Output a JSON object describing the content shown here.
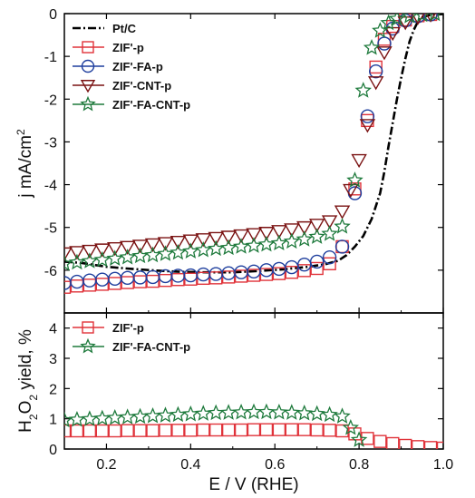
{
  "chart_data": [
    {
      "type": "line",
      "panel": "top",
      "xlabel": "",
      "ylabel": "j mA/cm²",
      "ylabel_main": "j mA/cm",
      "ylabel_sup": "2",
      "xlim": [
        0.1,
        1.0
      ],
      "ylim": [
        -7,
        0
      ],
      "x_ticks": [
        0.2,
        0.4,
        0.6,
        0.8,
        1.0
      ],
      "y_ticks": [
        0,
        -1,
        -2,
        -3,
        -4,
        -5,
        -6
      ],
      "y_tick_labels": [
        "0",
        "-1",
        "-2",
        "-3",
        "-4",
        "-5",
        "-6"
      ],
      "grid": false,
      "legend_position": "top-left",
      "series": [
        {
          "name": "Pt/C",
          "marker": "none",
          "line": "dash-dot",
          "color": "#000000",
          "x": [
            0.1,
            0.14,
            0.2,
            0.26,
            0.32,
            0.38,
            0.44,
            0.5,
            0.56,
            0.62,
            0.68,
            0.72,
            0.75,
            0.77,
            0.79,
            0.81,
            0.83,
            0.85,
            0.86,
            0.87,
            0.88,
            0.89,
            0.9,
            0.91,
            0.92,
            0.93,
            0.94,
            0.95,
            0.97,
            1.0
          ],
          "y": [
            -5.8,
            -5.83,
            -5.92,
            -5.97,
            -6.01,
            -6.04,
            -6.05,
            -6.05,
            -6.02,
            -5.98,
            -5.92,
            -5.86,
            -5.78,
            -5.65,
            -5.45,
            -5.2,
            -4.8,
            -4.2,
            -3.7,
            -3.1,
            -2.55,
            -2.0,
            -1.5,
            -1.05,
            -0.65,
            -0.38,
            -0.18,
            -0.08,
            -0.03,
            -0.01
          ]
        },
        {
          "name": "ZIF'-p",
          "marker": "square",
          "color": "#e0333a",
          "x": [
            0.1,
            0.13,
            0.16,
            0.19,
            0.22,
            0.25,
            0.28,
            0.31,
            0.34,
            0.37,
            0.4,
            0.43,
            0.46,
            0.49,
            0.52,
            0.55,
            0.58,
            0.61,
            0.64,
            0.67,
            0.7,
            0.73,
            0.76,
            0.79,
            0.82,
            0.84,
            0.86,
            0.88,
            0.91,
            0.94,
            0.97
          ],
          "y": [
            -6.4,
            -6.37,
            -6.35,
            -6.33,
            -6.31,
            -6.29,
            -6.27,
            -6.26,
            -6.24,
            -6.22,
            -6.21,
            -6.19,
            -6.18,
            -6.16,
            -6.14,
            -6.12,
            -6.1,
            -6.08,
            -6.05,
            -6.01,
            -5.96,
            -5.85,
            -5.45,
            -4.1,
            -2.5,
            -1.25,
            -0.6,
            -0.3,
            -0.15,
            -0.05,
            -0.02
          ]
        },
        {
          "name": "ZIF'-FA-p",
          "marker": "circle",
          "color": "#1f3f9e",
          "x": [
            0.1,
            0.13,
            0.16,
            0.19,
            0.22,
            0.25,
            0.28,
            0.31,
            0.34,
            0.37,
            0.4,
            0.43,
            0.46,
            0.49,
            0.52,
            0.55,
            0.58,
            0.61,
            0.64,
            0.67,
            0.7,
            0.73,
            0.76,
            0.79,
            0.82,
            0.84,
            0.86,
            0.88,
            0.91,
            0.94,
            0.97
          ],
          "y": [
            -6.3,
            -6.27,
            -6.24,
            -6.22,
            -6.2,
            -6.18,
            -6.17,
            -6.16,
            -6.14,
            -6.13,
            -6.12,
            -6.1,
            -6.09,
            -6.07,
            -6.05,
            -6.03,
            -6.0,
            -5.97,
            -5.93,
            -5.87,
            -5.8,
            -5.7,
            -5.45,
            -4.2,
            -2.4,
            -1.35,
            -0.7,
            -0.35,
            -0.16,
            -0.06,
            -0.02
          ]
        },
        {
          "name": "ZIF'-CNT-p",
          "marker": "triangle-down",
          "color": "#7a1212",
          "x": [
            0.1,
            0.13,
            0.16,
            0.19,
            0.22,
            0.25,
            0.28,
            0.31,
            0.34,
            0.37,
            0.4,
            0.43,
            0.46,
            0.49,
            0.52,
            0.55,
            0.58,
            0.61,
            0.64,
            0.67,
            0.7,
            0.73,
            0.76,
            0.78,
            0.8,
            0.82,
            0.84,
            0.86,
            0.88,
            0.91,
            0.94,
            0.97
          ],
          "y": [
            -5.6,
            -5.57,
            -5.54,
            -5.51,
            -5.48,
            -5.45,
            -5.42,
            -5.39,
            -5.36,
            -5.33,
            -5.3,
            -5.27,
            -5.24,
            -5.21,
            -5.18,
            -5.15,
            -5.12,
            -5.08,
            -5.04,
            -4.99,
            -4.93,
            -4.85,
            -4.62,
            -4.12,
            -3.42,
            -2.6,
            -1.6,
            -0.9,
            -0.45,
            -0.2,
            -0.08,
            -0.02
          ]
        },
        {
          "name": "ZIF'-FA-CNT-p",
          "marker": "star",
          "color": "#1e7a3c",
          "x": [
            0.1,
            0.13,
            0.16,
            0.19,
            0.22,
            0.25,
            0.28,
            0.31,
            0.34,
            0.37,
            0.4,
            0.43,
            0.46,
            0.49,
            0.52,
            0.55,
            0.58,
            0.61,
            0.64,
            0.67,
            0.7,
            0.73,
            0.76,
            0.79,
            0.81,
            0.83,
            0.85,
            0.87,
            0.89,
            0.92,
            0.95,
            0.98
          ],
          "y": [
            -5.85,
            -5.82,
            -5.79,
            -5.76,
            -5.73,
            -5.7,
            -5.67,
            -5.65,
            -5.62,
            -5.59,
            -5.56,
            -5.53,
            -5.5,
            -5.48,
            -5.45,
            -5.43,
            -5.4,
            -5.37,
            -5.33,
            -5.28,
            -5.22,
            -5.15,
            -4.98,
            -3.9,
            -1.8,
            -0.8,
            -0.4,
            -0.22,
            -0.12,
            -0.06,
            -0.03,
            -0.01
          ]
        }
      ]
    },
    {
      "type": "line",
      "panel": "bottom",
      "xlabel": "E / V (RHE)",
      "ylabel": "H₂O₂ yield, %",
      "ylabel_pre": "H",
      "ylabel_sub1": "2",
      "ylabel_mid": "O",
      "ylabel_sub2": "2",
      "ylabel_post": " yield, %",
      "xlim": [
        0.1,
        1.0
      ],
      "ylim": [
        0,
        4.5
      ],
      "x_ticks": [
        0.2,
        0.4,
        0.6,
        0.8,
        1.0
      ],
      "x_tick_labels": [
        "0.2",
        "0.4",
        "0.6",
        "0.8",
        "1.0"
      ],
      "y_ticks": [
        0,
        1,
        2,
        3,
        4
      ],
      "y_tick_labels": [
        "0",
        "1",
        "2",
        "3",
        "4"
      ],
      "grid": false,
      "legend_position": "top-left",
      "series": [
        {
          "name": "ZIF'-p",
          "marker": "square",
          "color": "#e0333a",
          "x": [
            0.1,
            0.13,
            0.16,
            0.19,
            0.22,
            0.25,
            0.28,
            0.31,
            0.34,
            0.37,
            0.4,
            0.43,
            0.46,
            0.49,
            0.52,
            0.55,
            0.58,
            0.61,
            0.64,
            0.67,
            0.7,
            0.73,
            0.76,
            0.79,
            0.82,
            0.85,
            0.88,
            0.91,
            0.94,
            0.97,
            1.0
          ],
          "y": [
            0.6,
            0.6,
            0.6,
            0.6,
            0.6,
            0.61,
            0.61,
            0.61,
            0.62,
            0.62,
            0.62,
            0.63,
            0.63,
            0.63,
            0.63,
            0.64,
            0.64,
            0.64,
            0.64,
            0.64,
            0.63,
            0.62,
            0.6,
            0.5,
            0.35,
            0.25,
            0.18,
            0.12,
            0.08,
            0.05,
            0.03
          ]
        },
        {
          "name": "ZIF'-FA-CNT-p",
          "marker": "star",
          "color": "#1e7a3c",
          "x": [
            0.1,
            0.13,
            0.16,
            0.19,
            0.22,
            0.25,
            0.28,
            0.31,
            0.34,
            0.37,
            0.4,
            0.43,
            0.46,
            0.49,
            0.52,
            0.55,
            0.58,
            0.61,
            0.64,
            0.67,
            0.7,
            0.73,
            0.76,
            0.78,
            0.8
          ],
          "y": [
            0.95,
            0.97,
            0.99,
            1.01,
            1.03,
            1.05,
            1.07,
            1.09,
            1.11,
            1.13,
            1.15,
            1.17,
            1.19,
            1.2,
            1.21,
            1.22,
            1.22,
            1.21,
            1.2,
            1.18,
            1.16,
            1.13,
            1.08,
            0.7,
            0.3
          ]
        }
      ]
    }
  ]
}
